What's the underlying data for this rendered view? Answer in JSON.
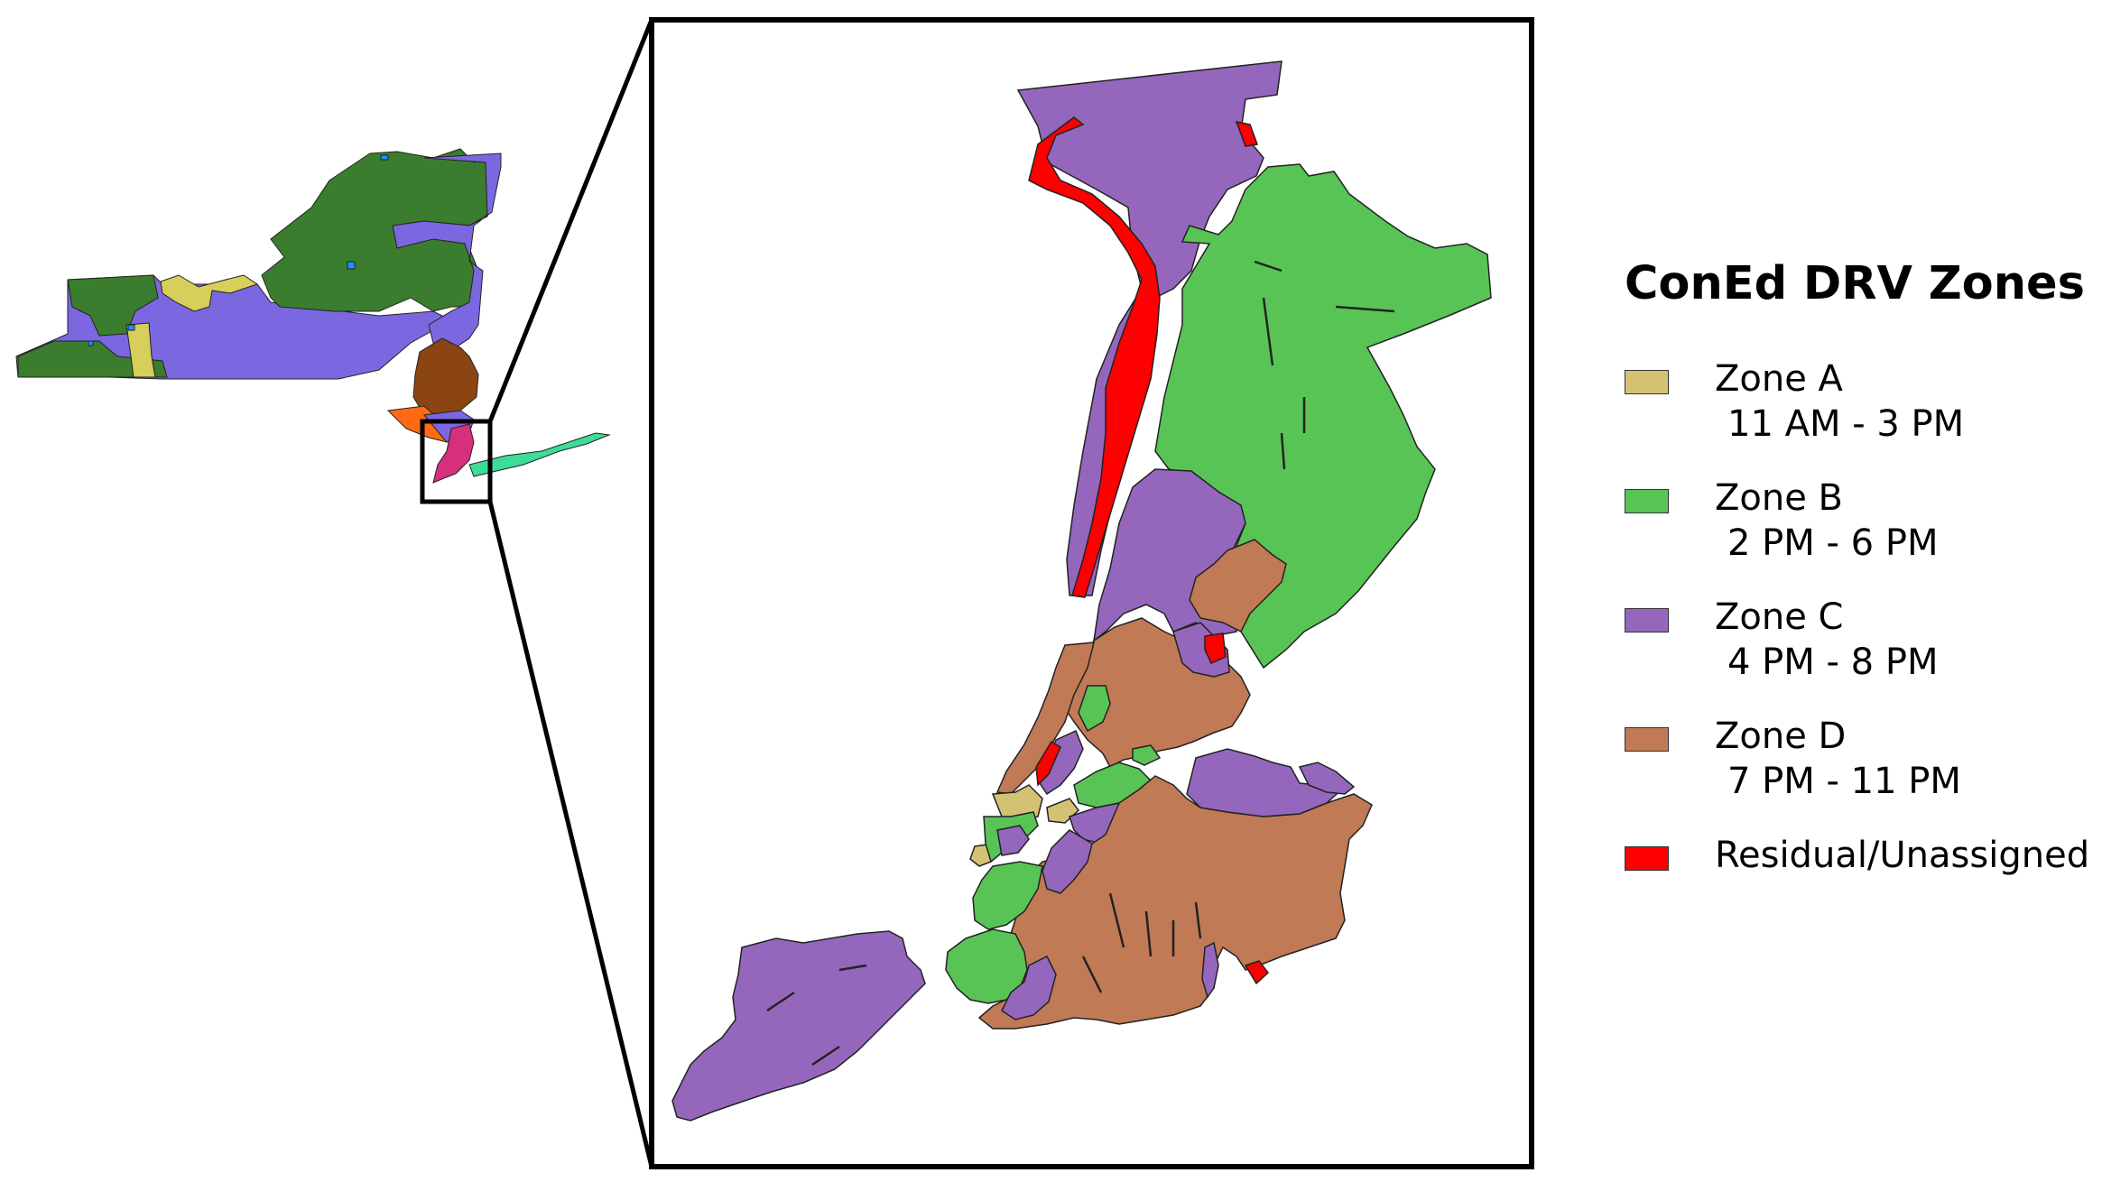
{
  "legend": {
    "title": "ConEd DRV Zones",
    "items": [
      {
        "name": "Zone A",
        "time": "11 AM - 3 PM",
        "color": "#d4c274"
      },
      {
        "name": "Zone B",
        "time": "2 PM - 6 PM",
        "color": "#59c456"
      },
      {
        "name": "Zone C",
        "time": "4 PM - 8 PM",
        "color": "#9467bd"
      },
      {
        "name": "Zone D",
        "time": "7 PM - 11 PM",
        "color": "#c07a55"
      },
      {
        "name": "Residual/Unassigned",
        "time": "",
        "color": "#ff0000"
      }
    ]
  },
  "state_colors": {
    "dark_green": "#3b7d2e",
    "purple": "#7b68e0",
    "olive_yellow": "#d6cf5c",
    "brown": "#8b4513",
    "orange": "#ff6a13",
    "magenta": "#d6307c",
    "mint": "#3ddc97",
    "blue": "#1e90ff"
  }
}
